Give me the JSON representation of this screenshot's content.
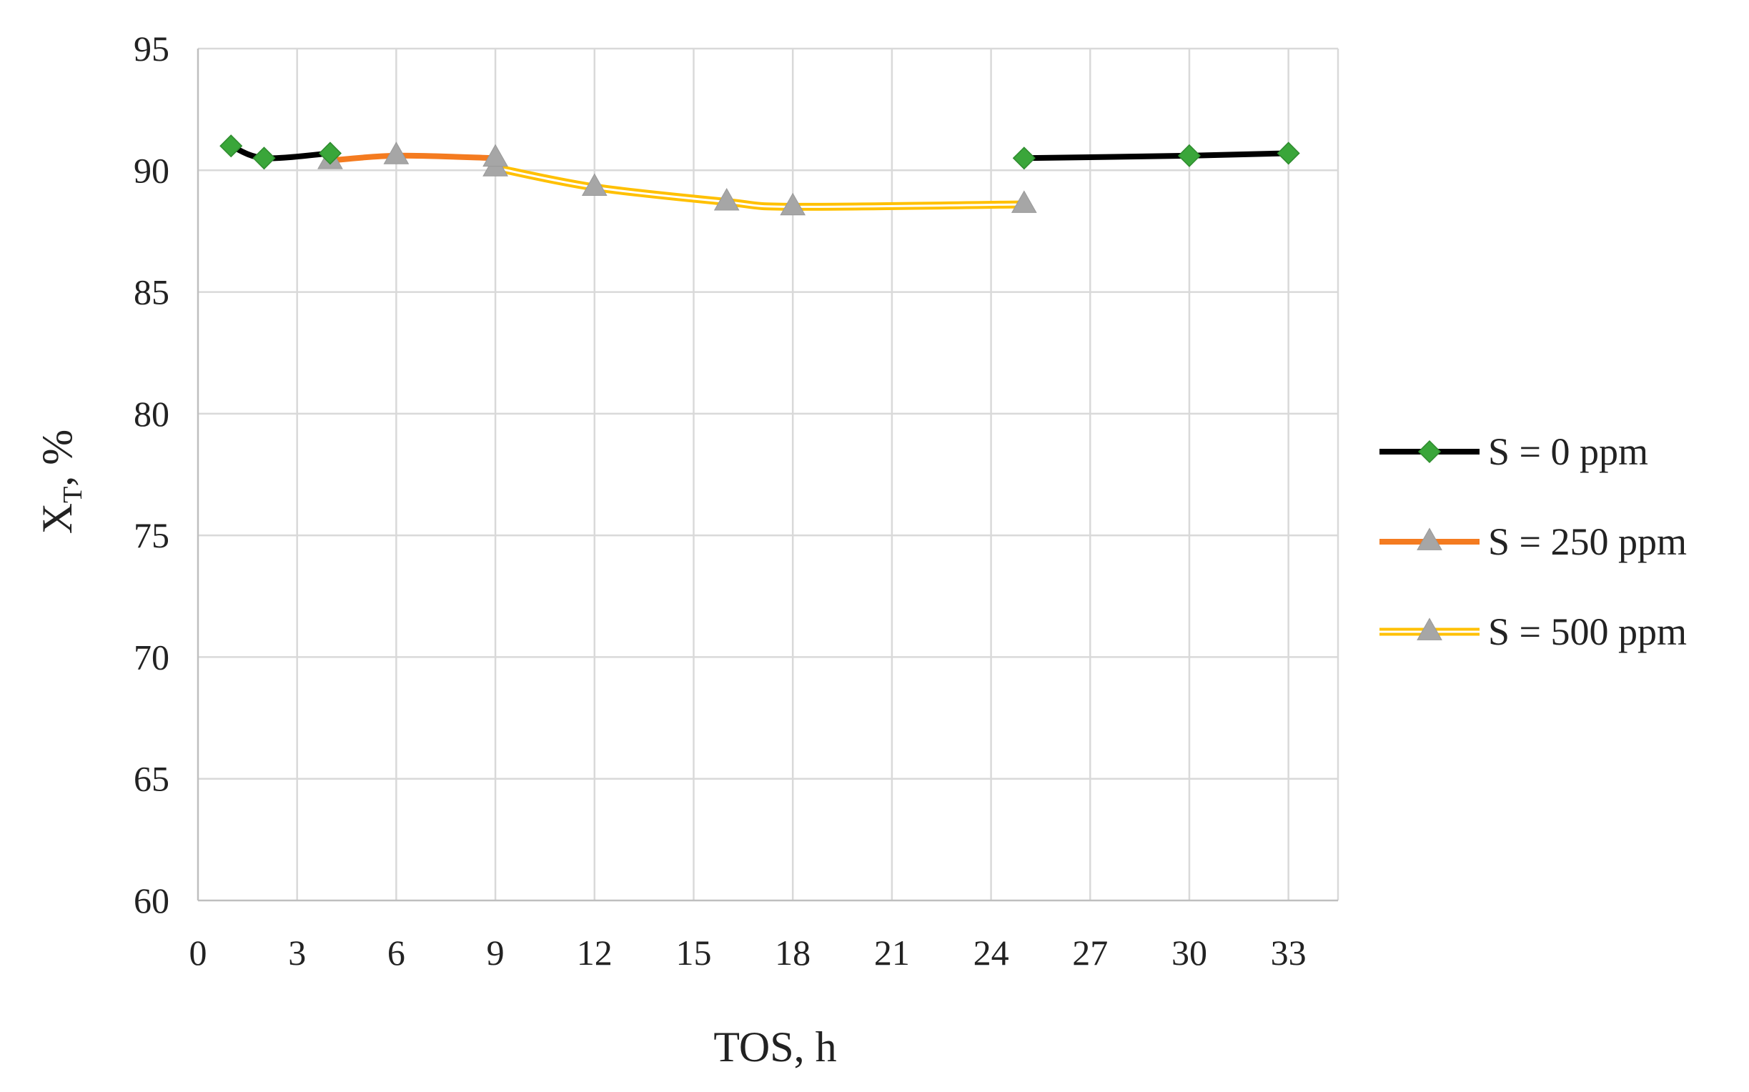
{
  "chart_data": {
    "type": "line",
    "xlabel": "TOS, h",
    "ylabel": {
      "main": "X",
      "sub": "T",
      "suffix": ", %"
    },
    "xlim": [
      0,
      34.5
    ],
    "ylim": [
      60,
      95
    ],
    "x_ticks": [
      0,
      3,
      6,
      9,
      12,
      15,
      18,
      21,
      24,
      27,
      30,
      33
    ],
    "y_ticks": [
      60,
      65,
      70,
      75,
      80,
      85,
      90,
      95
    ],
    "grid": true,
    "legend_position": "right",
    "series": [
      {
        "name": "S = 0 ppm",
        "line_color": "#000000",
        "marker": "diamond",
        "marker_color": "#3aa63a",
        "segments": [
          {
            "x": [
              1,
              2,
              4
            ],
            "y": [
              91.0,
              90.5,
              90.7
            ]
          },
          {
            "x": [
              25,
              30,
              33
            ],
            "y": [
              90.5,
              90.6,
              90.7
            ]
          }
        ]
      },
      {
        "name": "S = 250 ppm",
        "line_color": "#f47b20",
        "marker": "triangle",
        "marker_color": "#a6a6a6",
        "segments": [
          {
            "x": [
              4,
              6,
              9
            ],
            "y": [
              90.4,
              90.6,
              90.5
            ]
          }
        ]
      },
      {
        "name": "S = 500 ppm",
        "line_color": "#ffc000",
        "line_style": "double",
        "marker": "triangle",
        "marker_color": "#a6a6a6",
        "segments": [
          {
            "x": [
              9,
              12,
              16,
              18,
              25
            ],
            "y": [
              90.1,
              89.3,
              88.7,
              88.5,
              88.6
            ]
          }
        ]
      }
    ]
  }
}
